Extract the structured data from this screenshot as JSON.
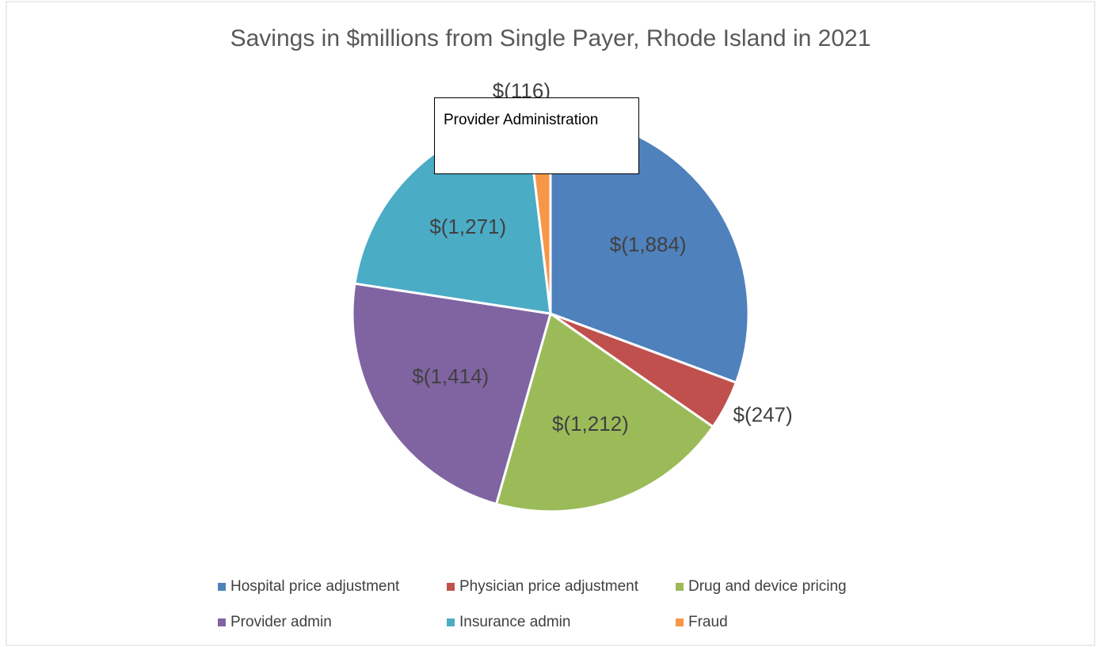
{
  "chart_data": {
    "type": "pie",
    "title": "Savings in $millions from Single Payer, Rhode Island in 2021",
    "annotation": "Provider Administration",
    "categories": [
      "Hospital price adjustment",
      "Physician price adjustment",
      "Drug and device pricing",
      "Provider admin",
      "Insurance admin",
      "Fraud"
    ],
    "values": [
      -1884,
      -247,
      -1212,
      -1414,
      -1271,
      -116
    ],
    "value_labels": [
      "$(1,884)",
      "$(247)",
      "$(1,212)",
      "$(1,414)",
      "$(1,271)",
      "$(116)"
    ],
    "colors": [
      "#4f81bd",
      "#c0504d",
      "#9bbb59",
      "#8064a2",
      "#4bacc6",
      "#f79646"
    ],
    "legend": "bottom"
  }
}
